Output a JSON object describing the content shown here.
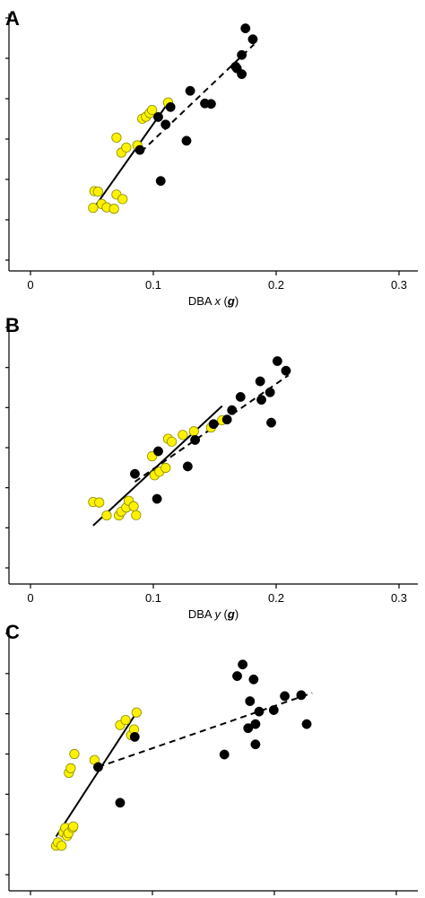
{
  "colors": {
    "yellow_fill": "#FFF200",
    "yellow_stroke": "#8c8c00",
    "black": "#000000"
  },
  "chart_data": [
    {
      "type": "scatter",
      "panel_label": "A",
      "xlabel_prefix": "DBA ",
      "xlabel_var": "x",
      "xlabel_open": " (",
      "xlabel_unit": "g",
      "xlabel_close": ")",
      "xlim": [
        -0.01,
        0.31
      ],
      "ylim": [
        0,
        1
      ],
      "x_ticks": [
        0,
        0.1,
        0.2,
        0.3
      ],
      "x_tick_labels": [
        "0",
        "0.1",
        "0.2",
        "0.3"
      ],
      "y_tick_count": 7,
      "grid": false,
      "series": [
        {
          "color": "yellow",
          "points": [
            [
              0.052,
              0.285
            ],
            [
              0.055,
              0.283
            ],
            [
              0.051,
              0.216
            ],
            [
              0.058,
              0.232
            ],
            [
              0.062,
              0.218
            ],
            [
              0.068,
              0.212
            ],
            [
              0.07,
              0.271
            ],
            [
              0.075,
              0.252
            ],
            [
              0.074,
              0.444
            ],
            [
              0.078,
              0.465
            ],
            [
              0.07,
              0.506
            ],
            [
              0.087,
              0.474
            ],
            [
              0.091,
              0.584
            ],
            [
              0.094,
              0.592
            ],
            [
              0.097,
              0.607
            ],
            [
              0.099,
              0.62
            ],
            [
              0.112,
              0.651
            ]
          ],
          "fit": [
            [
              0.052,
              0.218
            ],
            [
              0.113,
              0.656
            ]
          ],
          "fit_style": "solid"
        },
        {
          "color": "black",
          "points": [
            [
              0.089,
              0.455
            ],
            [
              0.104,
              0.591
            ],
            [
              0.106,
              0.327
            ],
            [
              0.11,
              0.56
            ],
            [
              0.114,
              0.632
            ],
            [
              0.127,
              0.493
            ],
            [
              0.13,
              0.699
            ],
            [
              0.142,
              0.647
            ],
            [
              0.147,
              0.645
            ],
            [
              0.167,
              0.799
            ],
            [
              0.168,
              0.792
            ],
            [
              0.172,
              0.847
            ],
            [
              0.172,
              0.768
            ],
            [
              0.175,
              0.957
            ],
            [
              0.181,
              0.912
            ]
          ],
          "fit": [
            [
              0.09,
              0.447
            ],
            [
              0.182,
              0.891
            ]
          ],
          "fit_style": "dashed"
        }
      ]
    },
    {
      "type": "scatter",
      "panel_label": "B",
      "xlabel_prefix": "DBA ",
      "xlabel_var": "y",
      "xlabel_open": " (",
      "xlabel_unit": "g",
      "xlabel_close": ")",
      "xlim": [
        -0.01,
        0.31
      ],
      "ylim": [
        0,
        1
      ],
      "x_ticks": [
        0,
        0.1,
        0.2,
        0.3
      ],
      "x_tick_labels": [
        "0",
        "0.1",
        "0.2",
        "0.3"
      ],
      "y_tick_count": 7,
      "grid": false,
      "series": [
        {
          "color": "yellow",
          "points": [
            [
              0.051,
              0.274
            ],
            [
              0.056,
              0.272
            ],
            [
              0.062,
              0.218
            ],
            [
              0.072,
              0.218
            ],
            [
              0.074,
              0.234
            ],
            [
              0.078,
              0.251
            ],
            [
              0.08,
              0.279
            ],
            [
              0.084,
              0.256
            ],
            [
              0.086,
              0.219
            ],
            [
              0.099,
              0.464
            ],
            [
              0.101,
              0.385
            ],
            [
              0.105,
              0.4
            ],
            [
              0.11,
              0.416
            ],
            [
              0.112,
              0.537
            ],
            [
              0.115,
              0.525
            ],
            [
              0.124,
              0.553
            ],
            [
              0.133,
              0.568
            ],
            [
              0.147,
              0.584
            ],
            [
              0.156,
              0.614
            ]
          ],
          "fit": [
            [
              0.051,
              0.176
            ],
            [
              0.156,
              0.673
            ]
          ],
          "fit_style": "solid"
        },
        {
          "color": "black",
          "points": [
            [
              0.085,
              0.391
            ],
            [
              0.103,
              0.287
            ],
            [
              0.104,
              0.485
            ],
            [
              0.128,
              0.422
            ],
            [
              0.134,
              0.532
            ],
            [
              0.149,
              0.598
            ],
            [
              0.16,
              0.617
            ],
            [
              0.164,
              0.656
            ],
            [
              0.171,
              0.711
            ],
            [
              0.187,
              0.776
            ],
            [
              0.188,
              0.699
            ],
            [
              0.195,
              0.73
            ],
            [
              0.196,
              0.604
            ],
            [
              0.201,
              0.86
            ],
            [
              0.208,
              0.82
            ]
          ],
          "fit": [
            [
              0.085,
              0.358
            ],
            [
              0.21,
              0.801
            ]
          ],
          "fit_style": "dashed"
        }
      ]
    },
    {
      "type": "scatter",
      "panel_label": "C",
      "xlim": [
        0,
        1
      ],
      "ylim": [
        0,
        1
      ],
      "x_tick_count": 4,
      "y_tick_count": 7,
      "grid": false,
      "series": [
        {
          "color": "yellow",
          "points": [
            [
              0.07,
              0.12
            ],
            [
              0.075,
              0.134
            ],
            [
              0.085,
              0.12
            ],
            [
              0.09,
              0.174
            ],
            [
              0.095,
              0.194
            ],
            [
              0.1,
              0.16
            ],
            [
              0.104,
              0.172
            ],
            [
              0.115,
              0.194
            ],
            [
              0.117,
              0.2
            ],
            [
              0.105,
              0.422
            ],
            [
              0.11,
              0.441
            ],
            [
              0.12,
              0.5
            ],
            [
              0.175,
              0.475
            ],
            [
              0.245,
              0.62
            ],
            [
              0.26,
              0.641
            ],
            [
              0.275,
              0.578
            ],
            [
              0.283,
              0.602
            ],
            [
              0.29,
              0.672
            ]
          ],
          "fit": [
            [
              0.07,
              0.158
            ],
            [
              0.29,
              0.672
            ]
          ],
          "fit_style": "solid"
        },
        {
          "color": "black",
          "points": [
            [
              0.185,
              0.446
            ],
            [
              0.245,
              0.298
            ],
            [
              0.285,
              0.571
            ],
            [
              0.53,
              0.498
            ],
            [
              0.565,
              0.823
            ],
            [
              0.58,
              0.871
            ],
            [
              0.595,
              0.607
            ],
            [
              0.6,
              0.719
            ],
            [
              0.61,
              0.809
            ],
            [
              0.615,
              0.624
            ],
            [
              0.615,
              0.54
            ],
            [
              0.625,
              0.676
            ],
            [
              0.665,
              0.682
            ],
            [
              0.695,
              0.74
            ],
            [
              0.74,
              0.744
            ],
            [
              0.755,
              0.624
            ]
          ],
          "fit": [
            [
              0.185,
              0.446
            ],
            [
              0.77,
              0.753
            ]
          ],
          "fit_style": "dashed"
        }
      ]
    }
  ]
}
